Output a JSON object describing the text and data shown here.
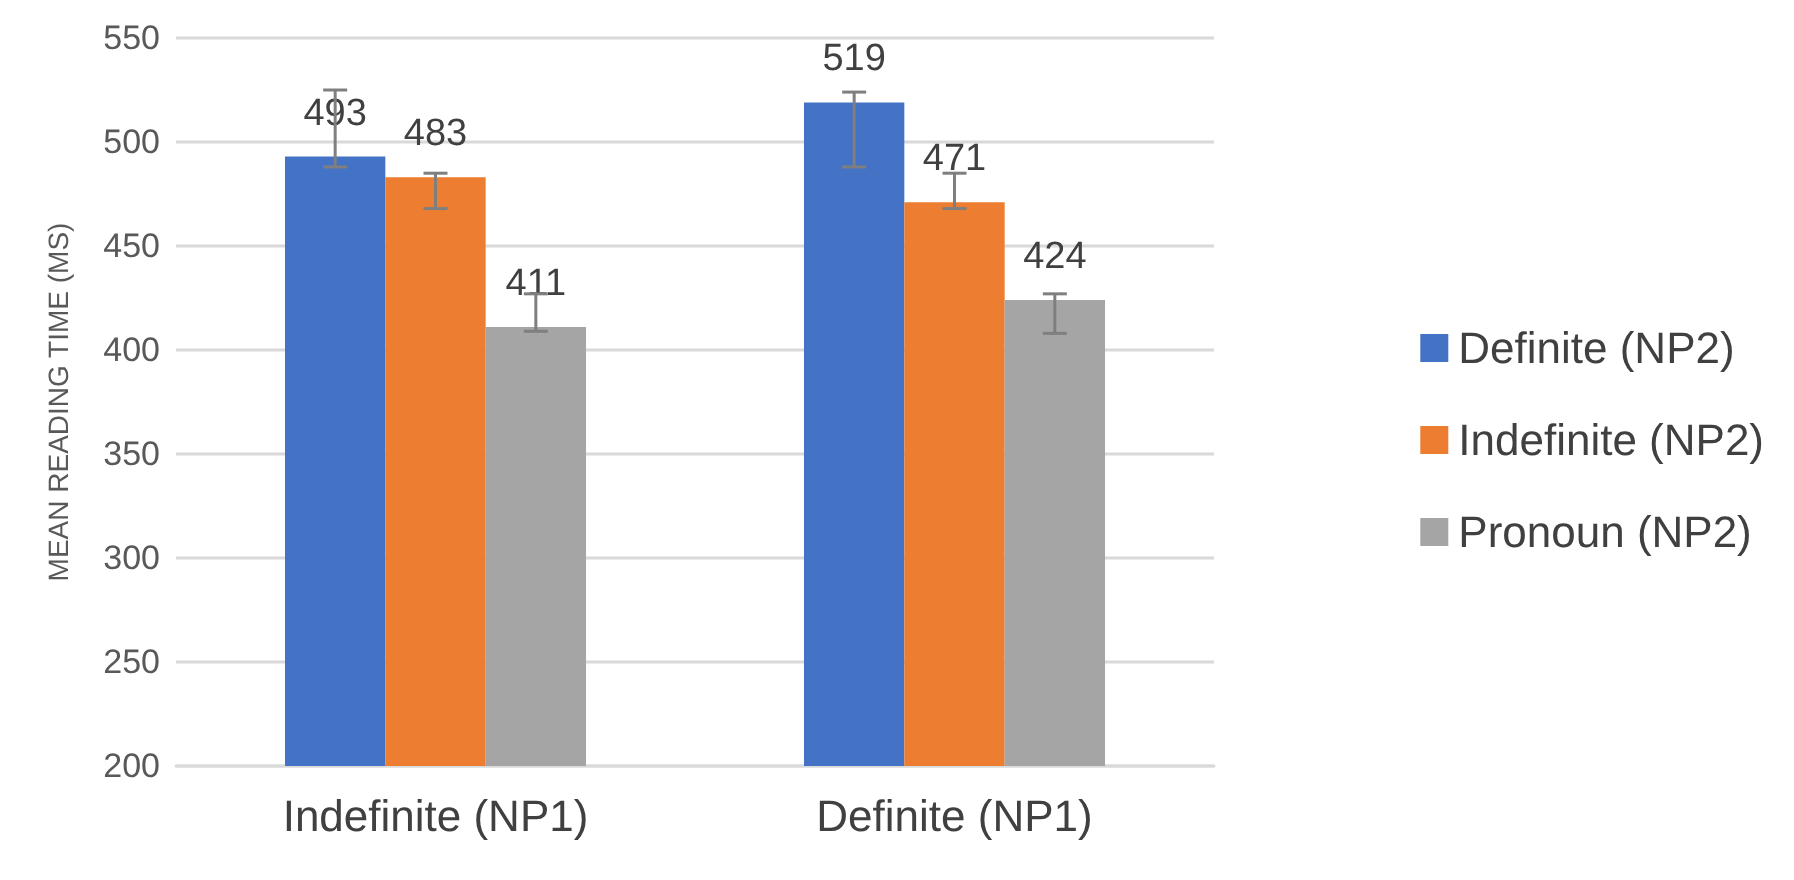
{
  "chart_data": {
    "type": "bar",
    "ylabel": "MEAN READING TIME (MS)",
    "categories": [
      "Indefinite (NP1)",
      "Definite (NP1)"
    ],
    "series": [
      {
        "name": "Definite (NP2)",
        "color": "#4472c4",
        "values": [
          493,
          519
        ],
        "errors": [
          [
            488,
            525
          ],
          [
            488,
            524
          ]
        ]
      },
      {
        "name": "Indefinite (NP2)",
        "color": "#ed7d31",
        "values": [
          483,
          471
        ],
        "errors": [
          [
            468,
            485
          ],
          [
            468,
            485
          ]
        ]
      },
      {
        "name": "Pronoun (NP2)",
        "color": "#a5a5a5",
        "values": [
          411,
          424
        ],
        "errors": [
          [
            409,
            427
          ],
          [
            408,
            427
          ]
        ]
      }
    ],
    "ylim": [
      200,
      550
    ],
    "yticks": [
      200,
      250,
      300,
      350,
      400,
      450,
      500,
      550
    ],
    "grid": "y",
    "legend": "right",
    "data_labels": true
  }
}
